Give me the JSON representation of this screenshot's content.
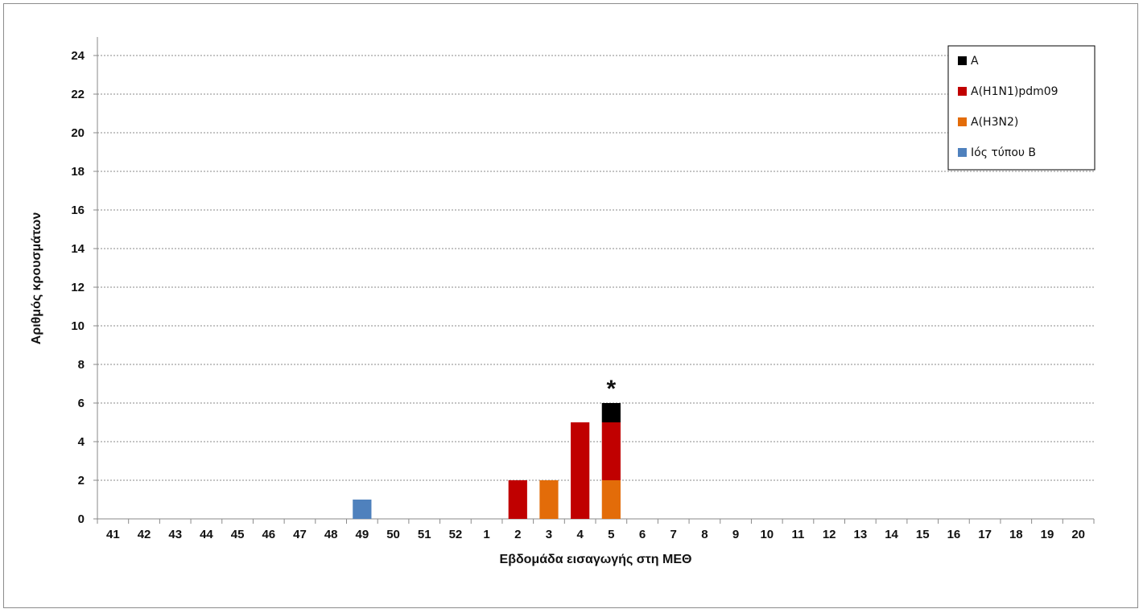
{
  "chart_data": {
    "type": "bar",
    "stacked": true,
    "title": "",
    "xlabel": "Εβδομάδα εισαγωγής στη ΜΕΘ",
    "ylabel": "Αριθμός κρουσμάτων",
    "ylim": [
      0,
      25
    ],
    "yticks": [
      0,
      2,
      4,
      6,
      8,
      10,
      12,
      14,
      16,
      18,
      20,
      22,
      24
    ],
    "grid": true,
    "legend_position": "top-right",
    "categories": [
      "41",
      "42",
      "43",
      "44",
      "45",
      "46",
      "47",
      "48",
      "49",
      "50",
      "51",
      "52",
      "1",
      "2",
      "3",
      "4",
      "5",
      "6",
      "7",
      "8",
      "9",
      "10",
      "11",
      "12",
      "13",
      "14",
      "15",
      "16",
      "17",
      "18",
      "19",
      "20"
    ],
    "series": [
      {
        "name": "Ιός τύπου Β",
        "color": "#4f81bd",
        "values": [
          0,
          0,
          0,
          0,
          0,
          0,
          0,
          0,
          1,
          0,
          0,
          0,
          0,
          0,
          0,
          0,
          0,
          0,
          0,
          0,
          0,
          0,
          0,
          0,
          0,
          0,
          0,
          0,
          0,
          0,
          0,
          0
        ]
      },
      {
        "name": "A(H3N2)",
        "color": "#e36c09",
        "values": [
          0,
          0,
          0,
          0,
          0,
          0,
          0,
          0,
          0,
          0,
          0,
          0,
          0,
          0,
          2,
          0,
          2,
          0,
          0,
          0,
          0,
          0,
          0,
          0,
          0,
          0,
          0,
          0,
          0,
          0,
          0,
          0
        ]
      },
      {
        "name": "A(H1N1)pdm09",
        "color": "#c00000",
        "values": [
          0,
          0,
          0,
          0,
          0,
          0,
          0,
          0,
          0,
          0,
          0,
          0,
          0,
          2,
          0,
          5,
          3,
          0,
          0,
          0,
          0,
          0,
          0,
          0,
          0,
          0,
          0,
          0,
          0,
          0,
          0,
          0
        ]
      },
      {
        "name": "A",
        "color": "#000000",
        "values": [
          0,
          0,
          0,
          0,
          0,
          0,
          0,
          0,
          0,
          0,
          0,
          0,
          0,
          0,
          0,
          0,
          1,
          0,
          0,
          0,
          0,
          0,
          0,
          0,
          0,
          0,
          0,
          0,
          0,
          0,
          0,
          0
        ]
      }
    ],
    "legend_order": [
      "A",
      "A(H1N1)pdm09",
      "A(H3N2)",
      "Ιός τύπου Β"
    ],
    "annotations": [
      {
        "text": "*",
        "category": "5"
      }
    ]
  }
}
